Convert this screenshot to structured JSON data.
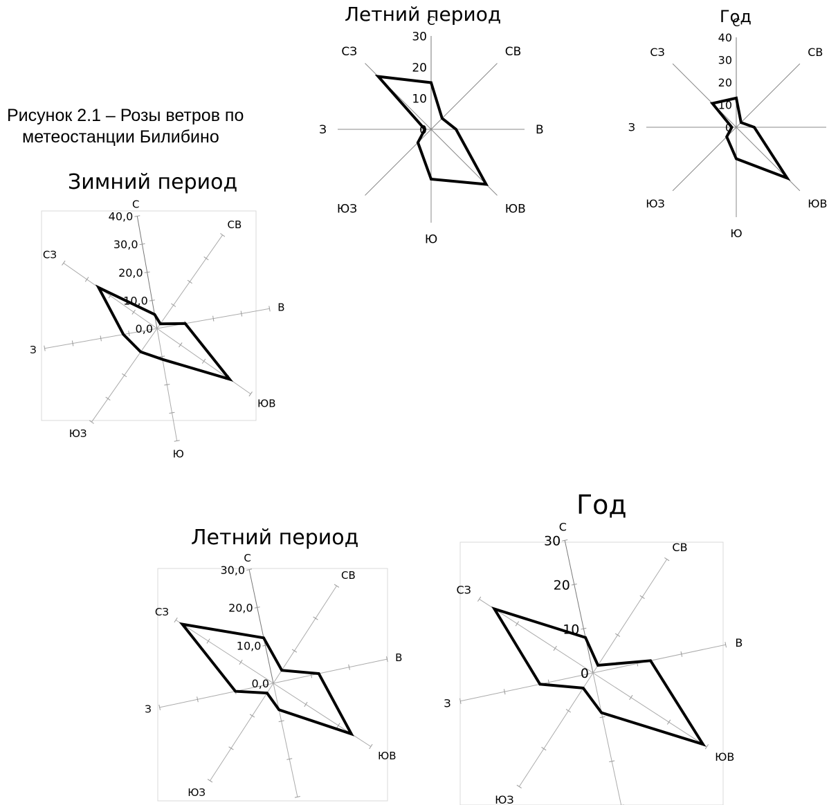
{
  "caption": {
    "line1": "Рисунок 2.1 – Розы ветров по",
    "line2": "метеостанции Билибино"
  },
  "chart_data": [
    {
      "type": "radar",
      "title": "Летний период",
      "directions": [
        "С",
        "СВ",
        "В",
        "ЮВ",
        "Ю",
        "ЮЗ",
        "З",
        "СЗ"
      ],
      "tick_labels": [
        "0",
        "10",
        "20",
        "30"
      ],
      "rmax": 30,
      "grid": false,
      "series": [
        {
          "values": [
            15,
            5,
            8,
            25,
            16,
            6,
            2,
            24
          ]
        }
      ]
    },
    {
      "type": "radar",
      "title": "Год",
      "directions": [
        "С",
        "СВ",
        "В",
        "ЮВ",
        "Ю",
        "ЮЗ",
        "З",
        "СЗ"
      ],
      "tick_labels": [
        "0",
        "10",
        "20",
        "30",
        "40"
      ],
      "rmax": 40,
      "grid": false,
      "series": [
        {
          "values": [
            13,
            3,
            8,
            32,
            14,
            6,
            2,
            15
          ]
        }
      ]
    },
    {
      "type": "radar",
      "title": "Зимний период",
      "directions": [
        "С",
        "СВ",
        "В",
        "ЮВ",
        "Ю",
        "ЮЗ",
        "З",
        "СЗ"
      ],
      "tick_labels": [
        "0,0",
        "10,0",
        "20,0",
        "30,0",
        "40,0"
      ],
      "rmax": 40,
      "grid": false,
      "series": [
        {
          "values": [
            5,
            2,
            10,
            31,
            11,
            10,
            12,
            25
          ]
        }
      ]
    },
    {
      "type": "radar",
      "title": "Летний период",
      "directions": [
        "С",
        "СВ",
        "В",
        "ЮВ",
        "Ю",
        "ЮЗ",
        "З",
        "СЗ"
      ],
      "tick_labels": [
        "0,0",
        "10,0",
        "20,0",
        "30,0"
      ],
      "rmax": 30,
      "grid": false,
      "series": [
        {
          "values": [
            12,
            4,
            12,
            24,
            7,
            3,
            10,
            28
          ]
        }
      ]
    },
    {
      "type": "radar",
      "title": "Год",
      "directions": [
        "С",
        "СВ",
        "В",
        "ЮВ",
        "Ю",
        "ЮЗ",
        "З",
        "СЗ"
      ],
      "tick_labels": [
        "0",
        "10",
        "20",
        "30"
      ],
      "rmax": 30,
      "grid": false,
      "series": [
        {
          "values": [
            8,
            2,
            13,
            29,
            9,
            4,
            12,
            26
          ]
        }
      ]
    }
  ]
}
